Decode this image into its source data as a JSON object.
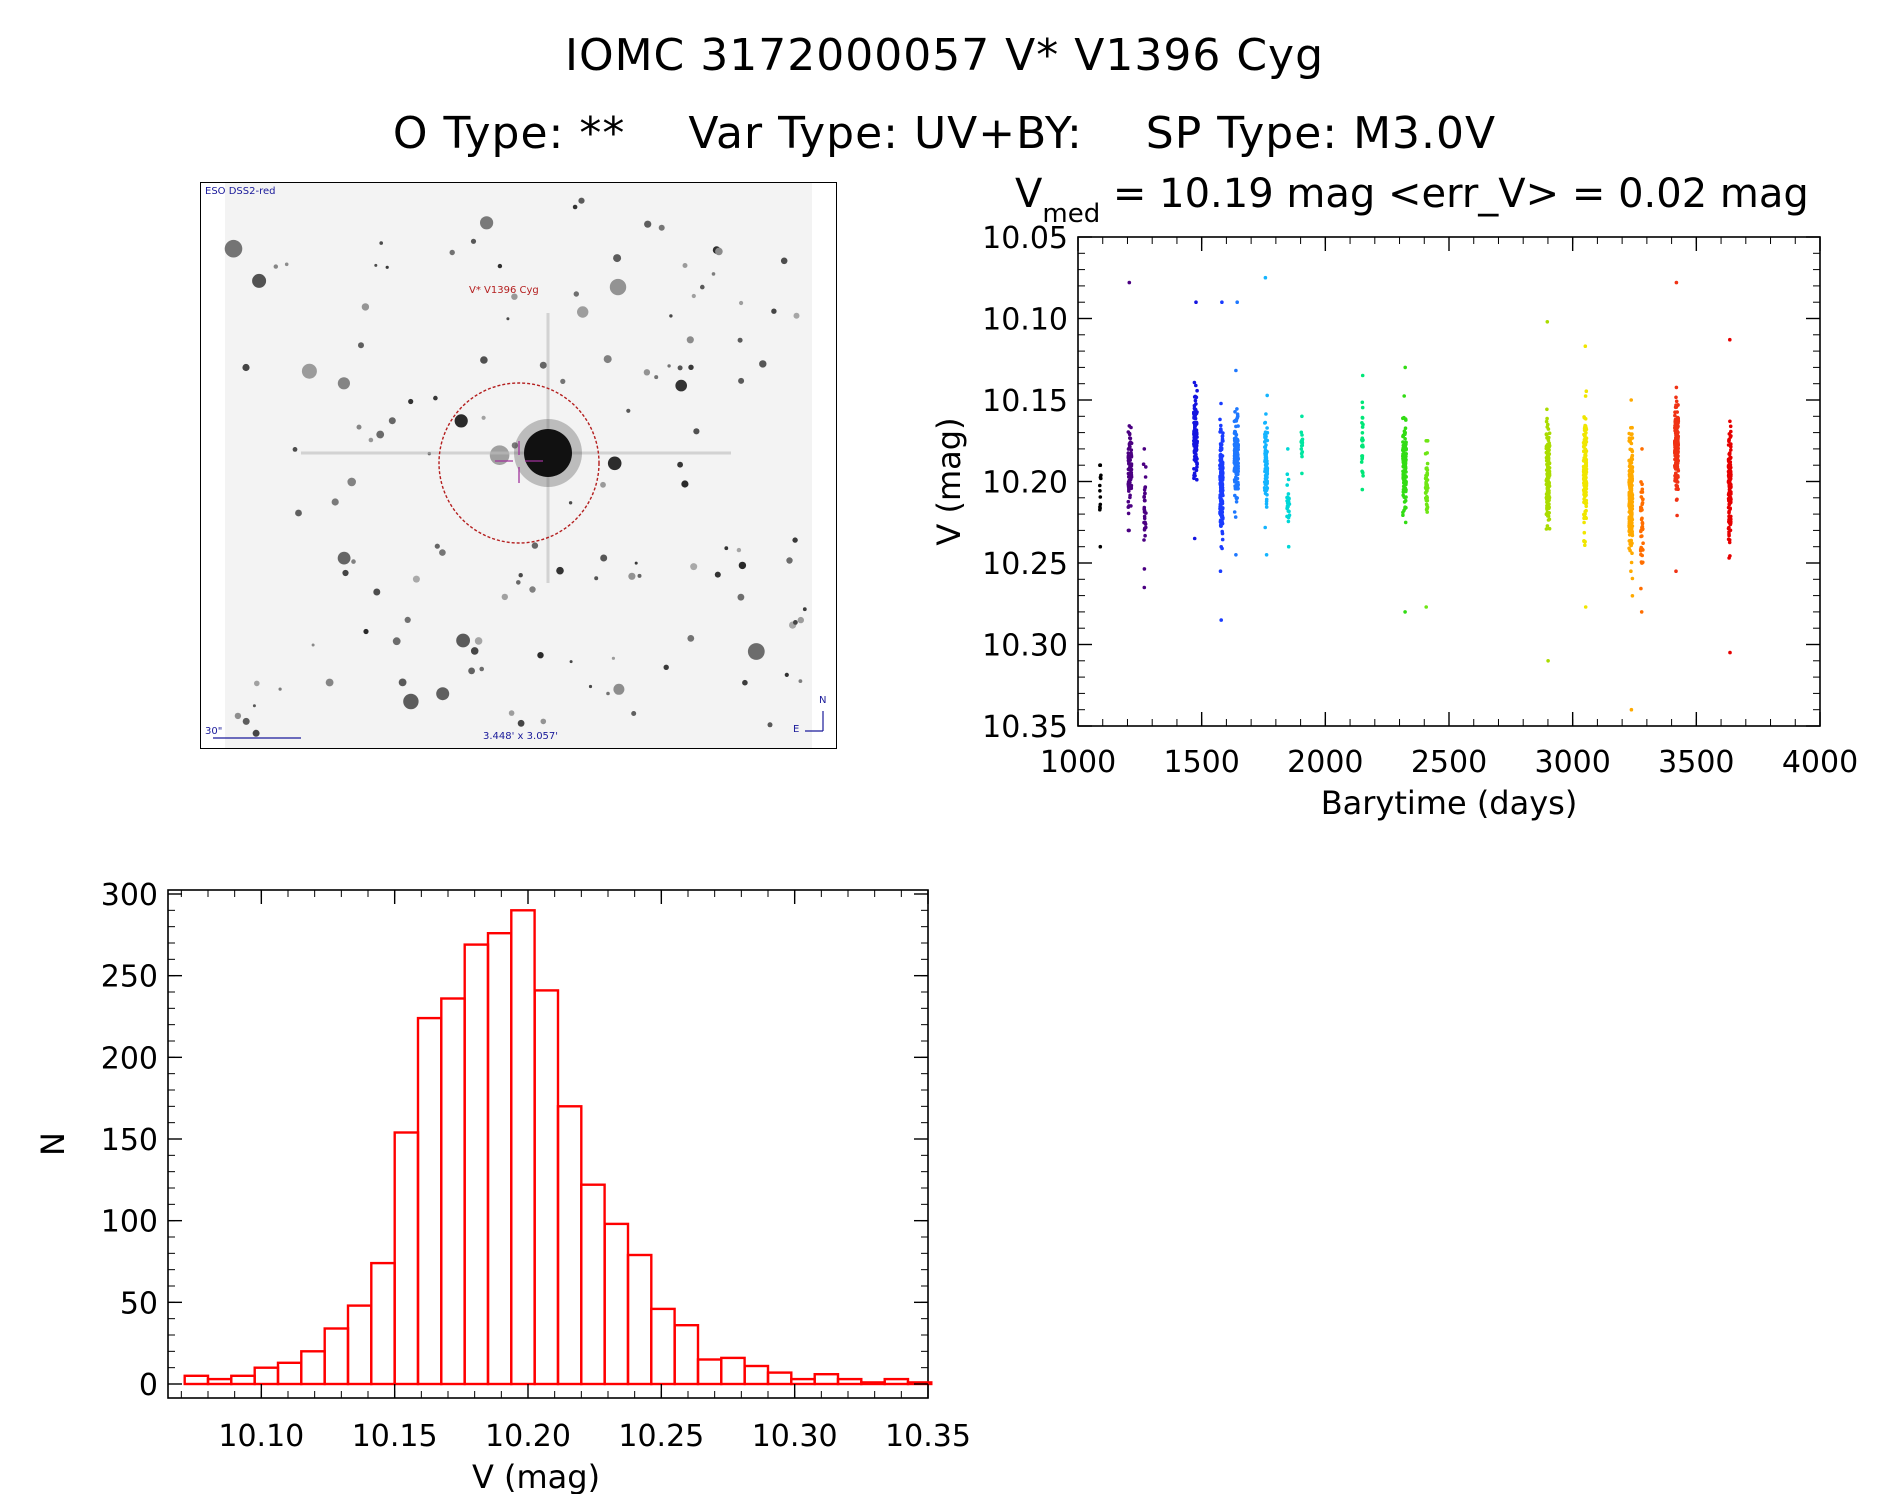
{
  "header": {
    "title": "IOMC 3172000057   V* V1396 Cyg",
    "otype": "O Type: **",
    "vartype": "Var Type: UV+BY:",
    "sptype": "SP Type: M3.0V"
  },
  "finder": {
    "survey": "ESO DSS2-red",
    "target_label": "V* V1396 Cyg",
    "scale_label": "30\"",
    "fov_label": "3.448' x 3.057'",
    "north": "N",
    "east": "E"
  },
  "lightcurve_stats": {
    "v_symbol": "V",
    "v_sub": "med",
    "text": " = 10.19 mag <err_V> = 0.02 mag"
  },
  "chart_data": [
    {
      "type": "scatter",
      "title": "V_med = 10.19 mag <err_V> = 0.02 mag",
      "xlabel": "Barytime (days)",
      "ylabel": "V (mag)",
      "xlim": [
        1000,
        4000
      ],
      "ylim": [
        10.35,
        10.05
      ],
      "y_inverted": true,
      "xticks": [
        1000,
        1500,
        2000,
        2500,
        3000,
        3500,
        4000
      ],
      "yticks": [
        "10.05",
        "10.10",
        "10.15",
        "10.20",
        "10.25",
        "10.30",
        "10.35"
      ],
      "grid": false,
      "series": [
        {
          "color": "#000000",
          "x": 1090,
          "width": 6,
          "center": 10.21,
          "spread": 0.015,
          "n": 12,
          "ymin": 10.19,
          "ymax": 10.24
        },
        {
          "color": "#4b0082",
          "x": 1210,
          "width": 14,
          "center": 10.195,
          "spread": 0.02,
          "n": 70,
          "ymin": 10.078,
          "ymax": 10.23
        },
        {
          "color": "#4b0082",
          "x": 1270,
          "width": 10,
          "center": 10.215,
          "spread": 0.02,
          "n": 30,
          "ymin": 10.18,
          "ymax": 10.265
        },
        {
          "color": "#1414e0",
          "x": 1475,
          "width": 14,
          "center": 10.17,
          "spread": 0.02,
          "n": 110,
          "ymin": 10.09,
          "ymax": 10.235
        },
        {
          "color": "#1a3cff",
          "x": 1580,
          "width": 12,
          "center": 10.2,
          "spread": 0.028,
          "n": 200,
          "ymin": 10.09,
          "ymax": 10.285
        },
        {
          "color": "#1e78ff",
          "x": 1640,
          "width": 16,
          "center": 10.185,
          "spread": 0.022,
          "n": 150,
          "ymin": 10.09,
          "ymax": 10.245
        },
        {
          "color": "#14b4ff",
          "x": 1760,
          "width": 12,
          "center": 10.19,
          "spread": 0.025,
          "n": 90,
          "ymin": 10.075,
          "ymax": 10.245
        },
        {
          "color": "#00d7d7",
          "x": 1850,
          "width": 10,
          "center": 10.21,
          "spread": 0.015,
          "n": 25,
          "ymin": 10.18,
          "ymax": 10.24
        },
        {
          "color": "#00e6a0",
          "x": 1905,
          "width": 6,
          "center": 10.18,
          "spread": 0.01,
          "n": 15,
          "ymin": 10.16,
          "ymax": 10.195
        },
        {
          "color": "#00e678",
          "x": 2150,
          "width": 6,
          "center": 10.175,
          "spread": 0.015,
          "n": 25,
          "ymin": 10.135,
          "ymax": 10.205
        },
        {
          "color": "#32dc14",
          "x": 2320,
          "width": 14,
          "center": 10.19,
          "spread": 0.025,
          "n": 120,
          "ymin": 10.13,
          "ymax": 10.28
        },
        {
          "color": "#6ee614",
          "x": 2410,
          "width": 10,
          "center": 10.2,
          "spread": 0.02,
          "n": 50,
          "ymin": 10.175,
          "ymax": 10.277
        },
        {
          "color": "#aadc00",
          "x": 2900,
          "width": 14,
          "center": 10.195,
          "spread": 0.025,
          "n": 150,
          "ymin": 10.102,
          "ymax": 10.31
        },
        {
          "color": "#f0e600",
          "x": 3050,
          "width": 12,
          "center": 10.195,
          "spread": 0.028,
          "n": 140,
          "ymin": 10.117,
          "ymax": 10.277
        },
        {
          "color": "#ffaa00",
          "x": 3235,
          "width": 14,
          "center": 10.21,
          "spread": 0.03,
          "n": 220,
          "ymin": 10.15,
          "ymax": 10.34
        },
        {
          "color": "#ff6e00",
          "x": 3280,
          "width": 10,
          "center": 10.225,
          "spread": 0.025,
          "n": 40,
          "ymin": 10.18,
          "ymax": 10.28
        },
        {
          "color": "#f03214",
          "x": 3420,
          "width": 14,
          "center": 10.18,
          "spread": 0.02,
          "n": 200,
          "ymin": 10.078,
          "ymax": 10.255
        },
        {
          "color": "#e60000",
          "x": 3635,
          "width": 10,
          "center": 10.2,
          "spread": 0.028,
          "n": 140,
          "ymin": 10.113,
          "ymax": 10.305
        }
      ]
    },
    {
      "type": "bar",
      "subtype": "histogram",
      "xlabel": "V (mag)",
      "ylabel": "N",
      "xlim": [
        10.065,
        10.35
      ],
      "ylim": [
        0,
        300
      ],
      "xticks": [
        "10.10",
        "10.15",
        "10.20",
        "10.25",
        "10.30",
        "10.35"
      ],
      "yticks": [
        "0",
        "50",
        "100",
        "150",
        "200",
        "250",
        "300"
      ],
      "bin_width": 0.00875,
      "bin_start": 10.07125,
      "values": [
        5,
        3,
        5,
        10,
        13,
        20,
        34,
        48,
        74,
        154,
        224,
        236,
        269,
        276,
        290,
        241,
        170,
        122,
        98,
        79,
        46,
        36,
        15,
        16,
        11,
        7,
        3,
        6,
        3,
        1,
        3,
        1
      ],
      "color": "#ff0000",
      "grid": false
    }
  ]
}
